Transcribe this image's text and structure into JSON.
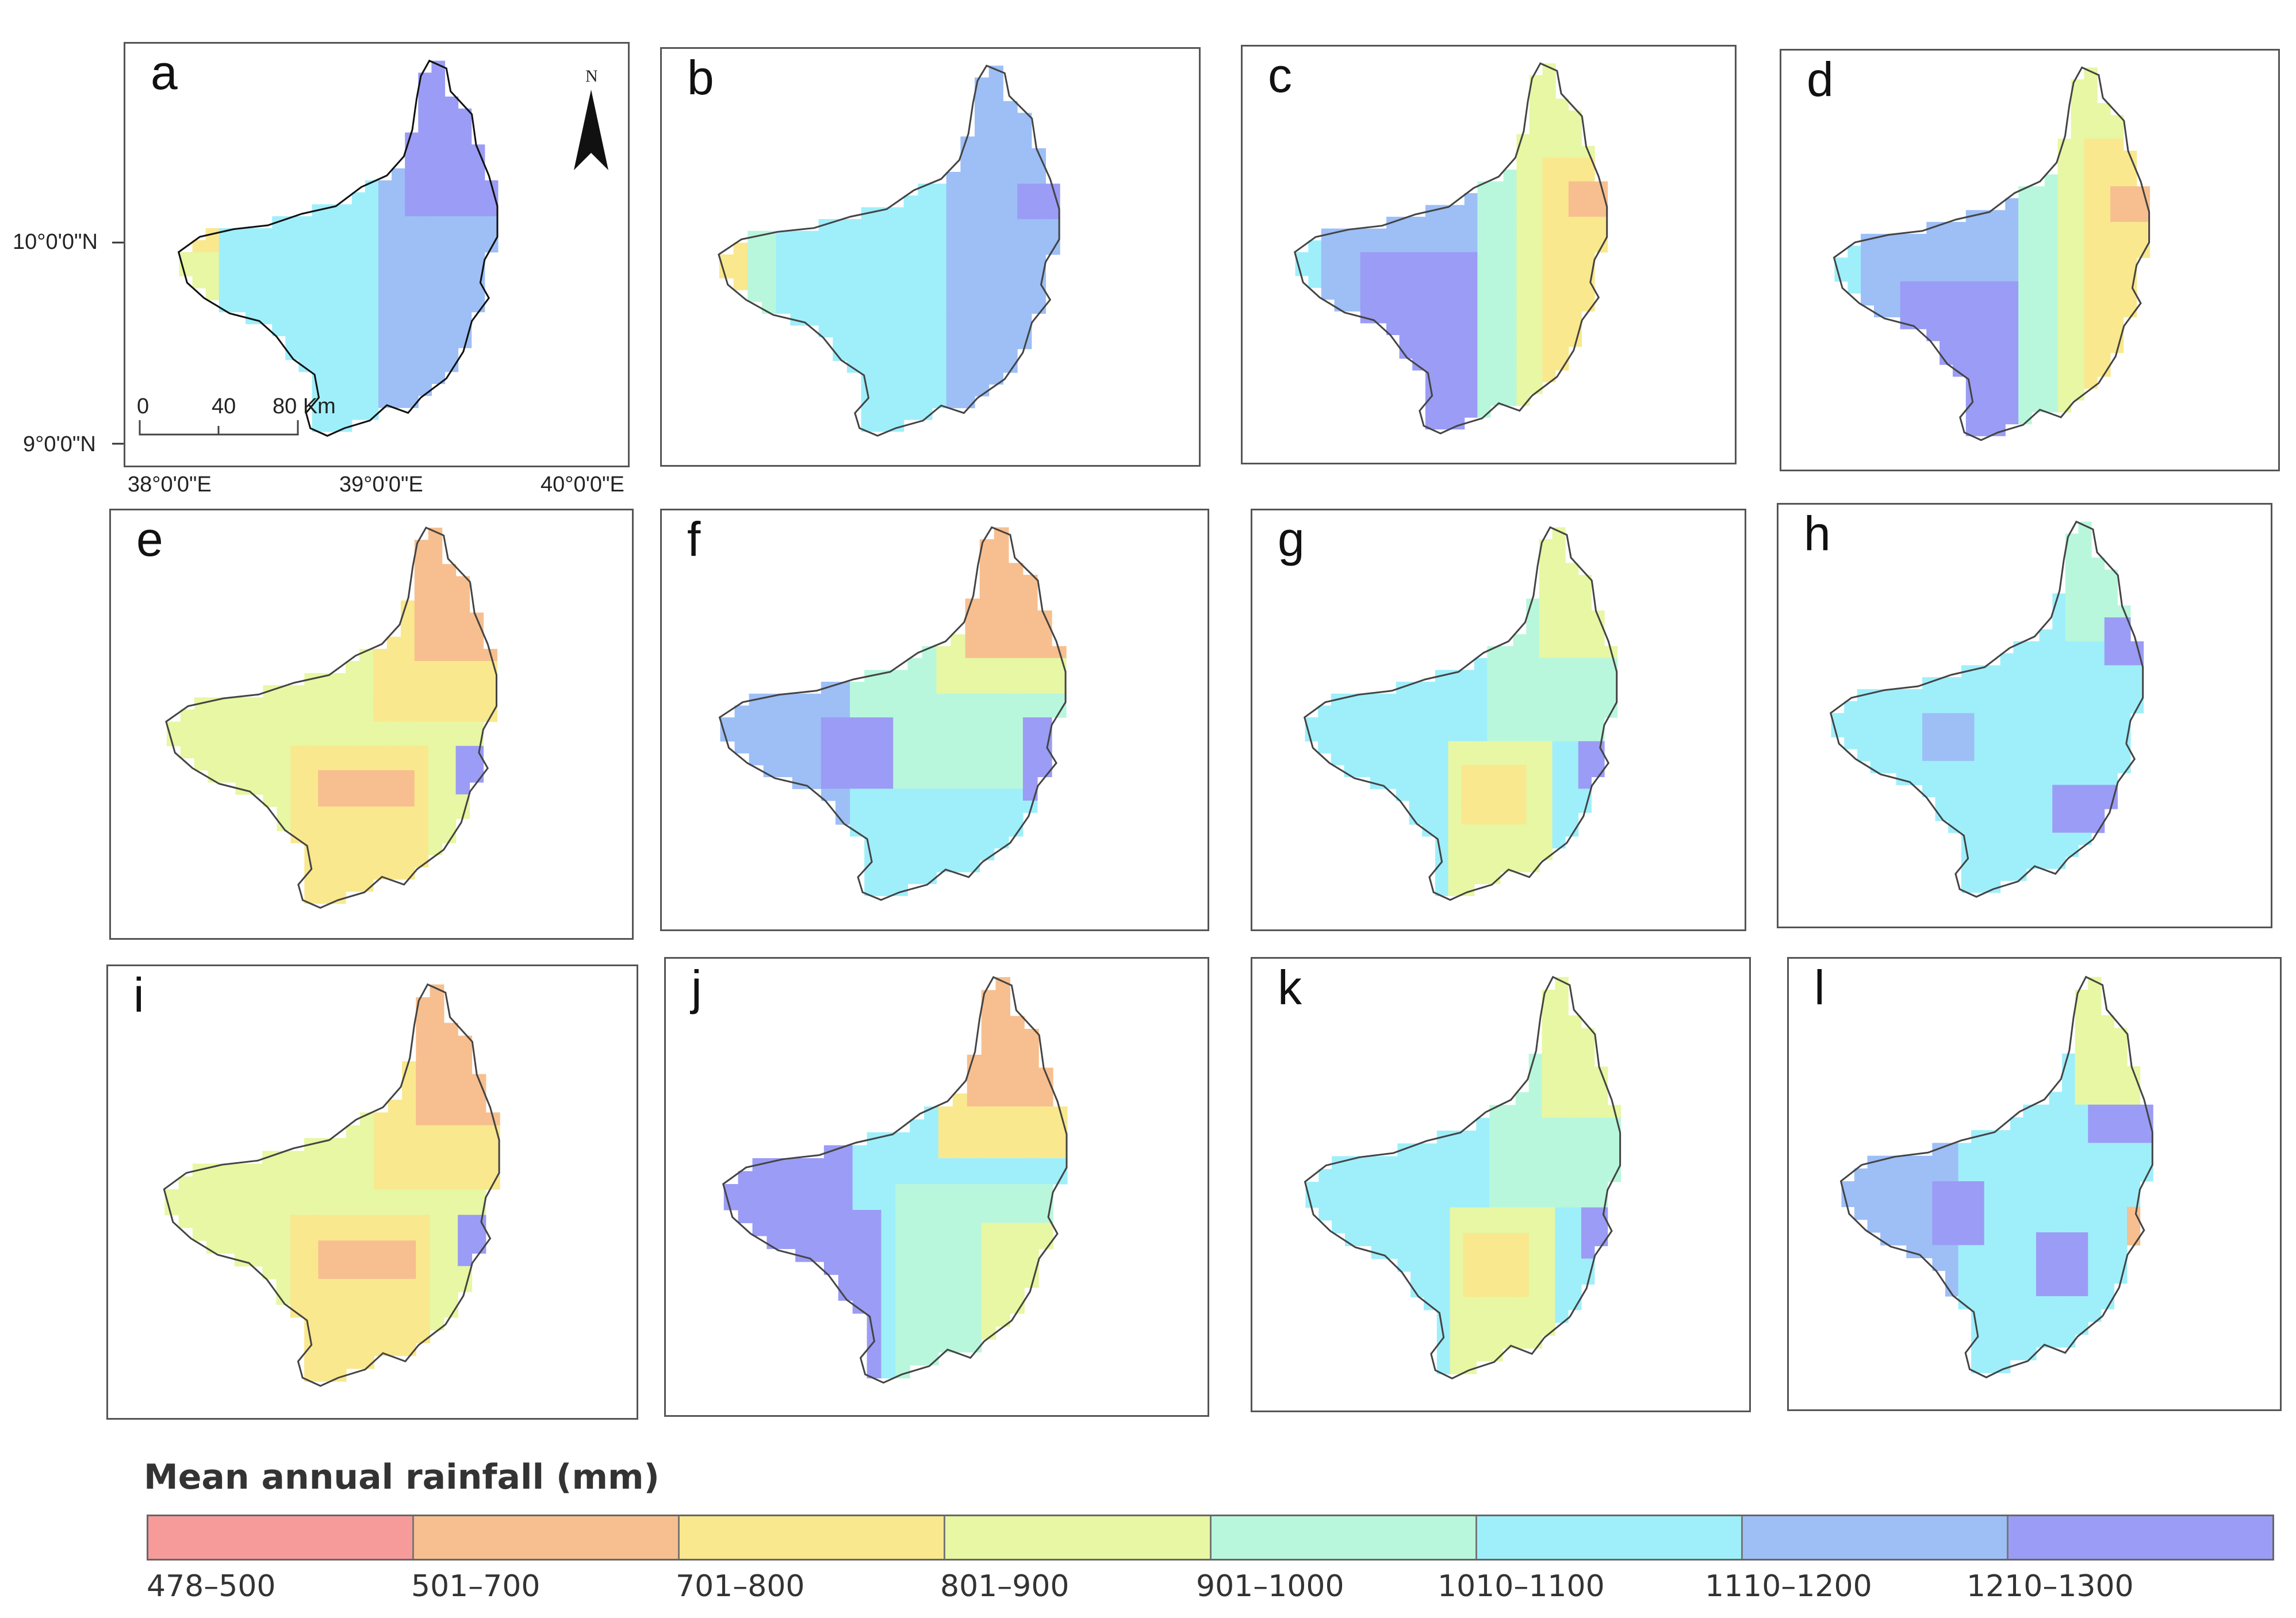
{
  "figure": {
    "map_a": {
      "lat_labels": [
        "10°0'0\"N",
        "9°0'0\"N"
      ],
      "lon_labels": [
        "38°0'0\"E",
        "39°0'0\"E",
        "40°0'0\"E"
      ],
      "north_label": "N",
      "scale_labels": [
        "0",
        "40",
        "80 Km"
      ]
    },
    "panels": [
      {
        "label": "a",
        "pattern": "north_purple_blue"
      },
      {
        "label": "b",
        "pattern": "cyan_blue"
      },
      {
        "label": "c",
        "pattern": "purple_west_yellow_east"
      },
      {
        "label": "d",
        "pattern": "purple_west_orange_east"
      },
      {
        "label": "e",
        "pattern": "green_orange"
      },
      {
        "label": "f",
        "pattern": "blue_mixed"
      },
      {
        "label": "g",
        "pattern": "cyan_green"
      },
      {
        "label": "h",
        "pattern": "cyan_purple_spots"
      },
      {
        "label": "i",
        "pattern": "green_orange"
      },
      {
        "label": "j",
        "pattern": "purple_west_mixed"
      },
      {
        "label": "k",
        "pattern": "cyan_green"
      },
      {
        "label": "l",
        "pattern": "blue_purple_spots"
      }
    ],
    "legend": {
      "title": "Mean annual rainfall (mm)",
      "classes": [
        {
          "label": "478–500",
          "color": "#f79a9a"
        },
        {
          "label": "501–700",
          "color": "#f7bf8f"
        },
        {
          "label": "701–800",
          "color": "#f9e88e"
        },
        {
          "label": "801–900",
          "color": "#e7f7a3"
        },
        {
          "label": "901–1000",
          "color": "#b9f7dd"
        },
        {
          "label": "1010–1100",
          "color": "#9feffb"
        },
        {
          "label": "1110–1200",
          "color": "#9dbff6"
        },
        {
          "label": "1210–1300",
          "color": "#9b9cf5"
        }
      ]
    }
  }
}
